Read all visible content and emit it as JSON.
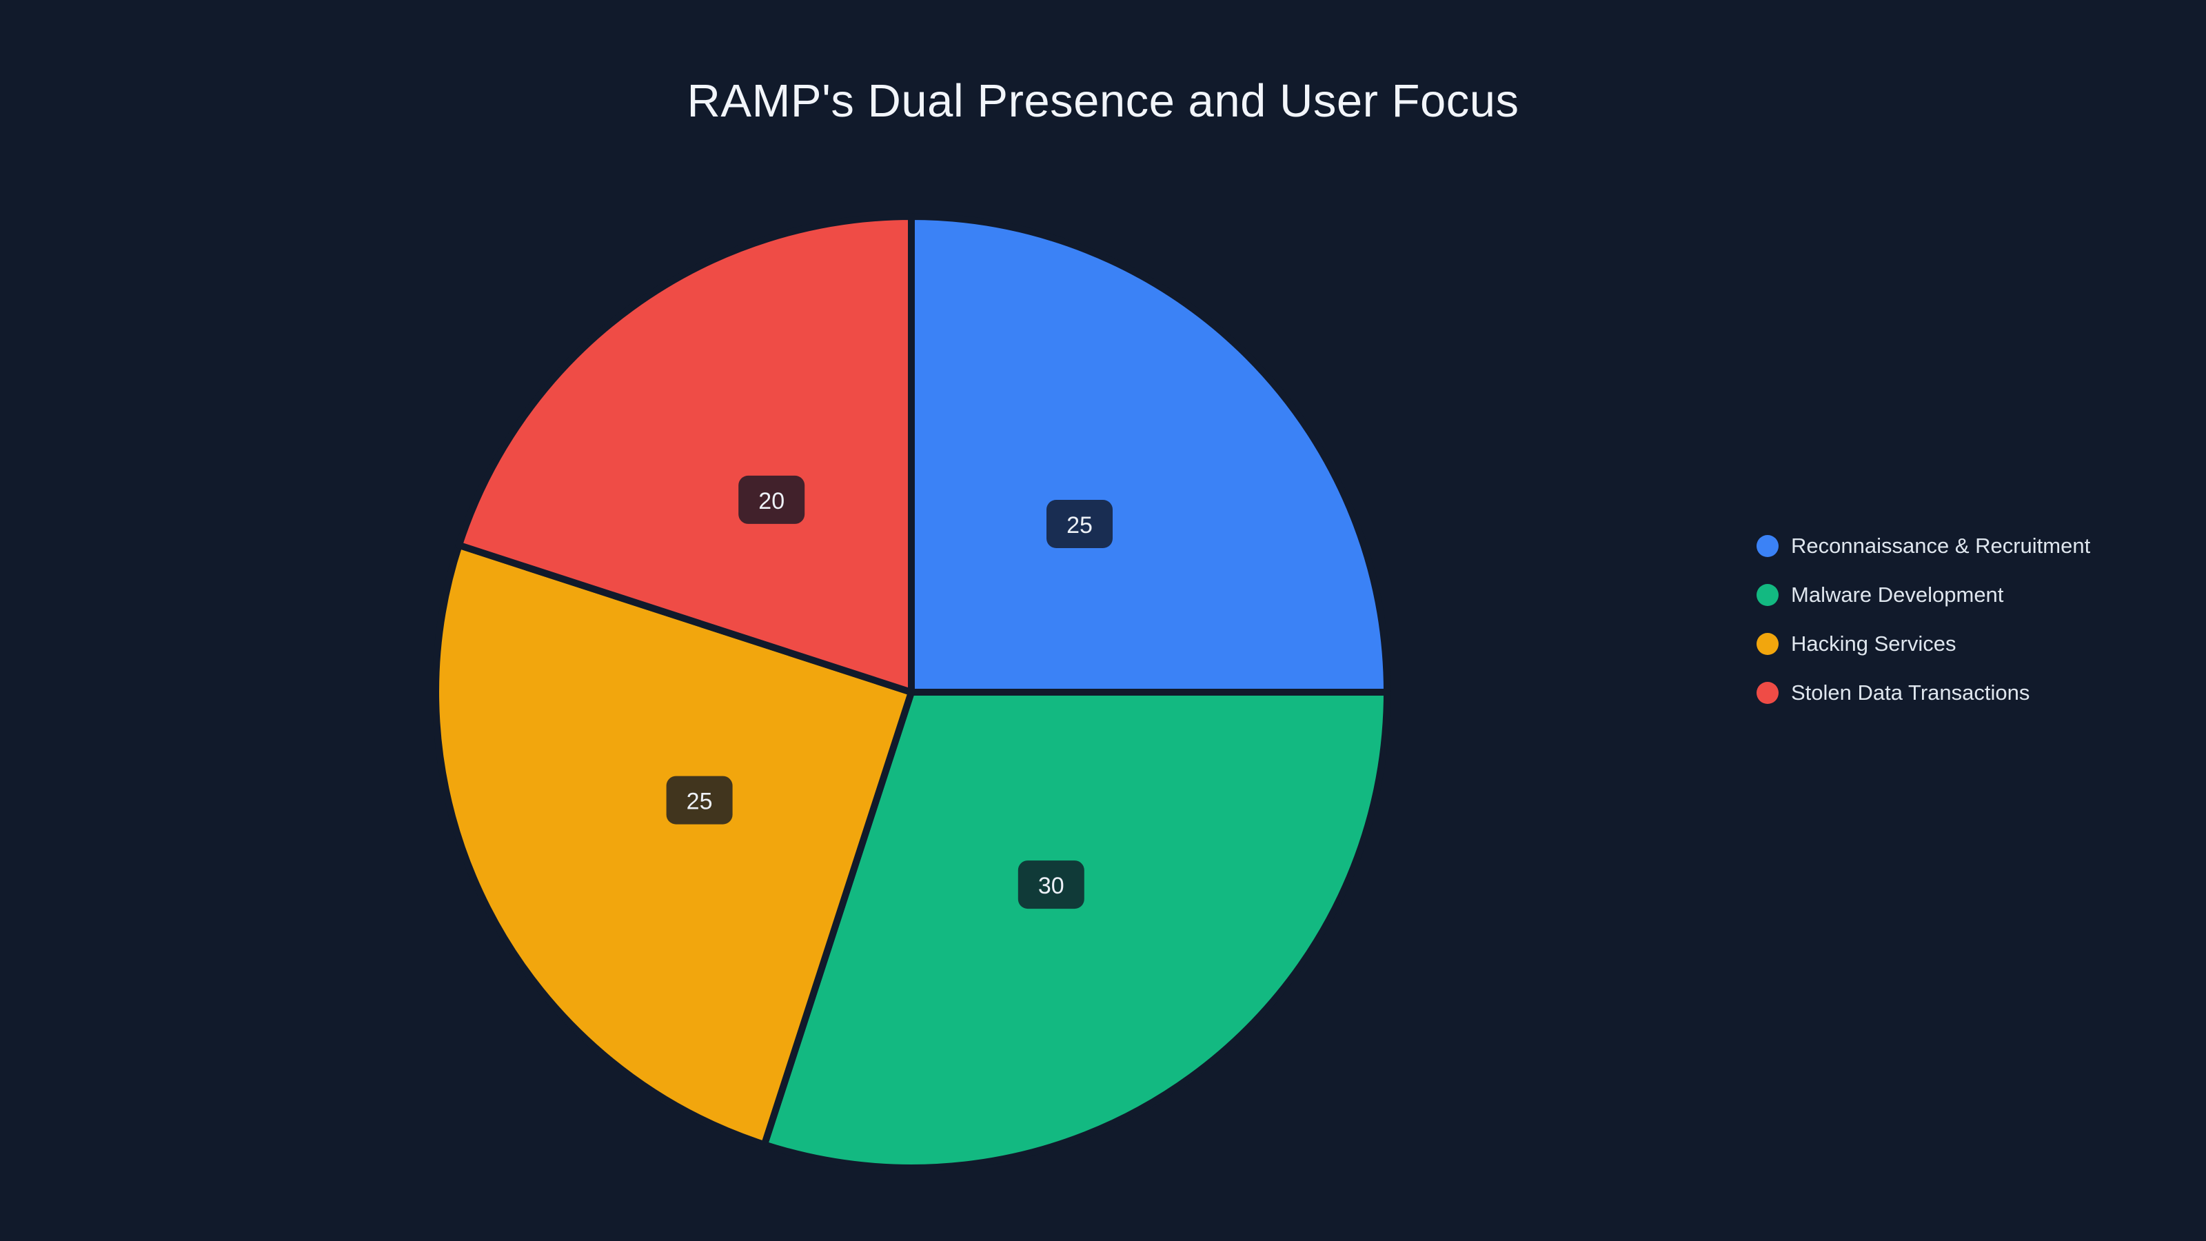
{
  "chart_data": {
    "type": "pie",
    "title": "RAMP's Dual Presence and User Focus",
    "labels": [
      "Reconnaissance & Recruitment",
      "Malware Development",
      "Hacking Services",
      "Stolen Data Transactions"
    ],
    "values": [
      25,
      30,
      25,
      20
    ],
    "colors": [
      "#3b82f6",
      "#13b981",
      "#f2a60d",
      "#ef4c46"
    ],
    "value_labels": [
      "25",
      "30",
      "25",
      "20"
    ],
    "legend_position": "right",
    "start_angle": "top",
    "direction": "clockwise",
    "background": "#111a2b",
    "chip_fill": "rgba(16,22,36,0.78)",
    "chip_text_color": "#edf1f7"
  }
}
